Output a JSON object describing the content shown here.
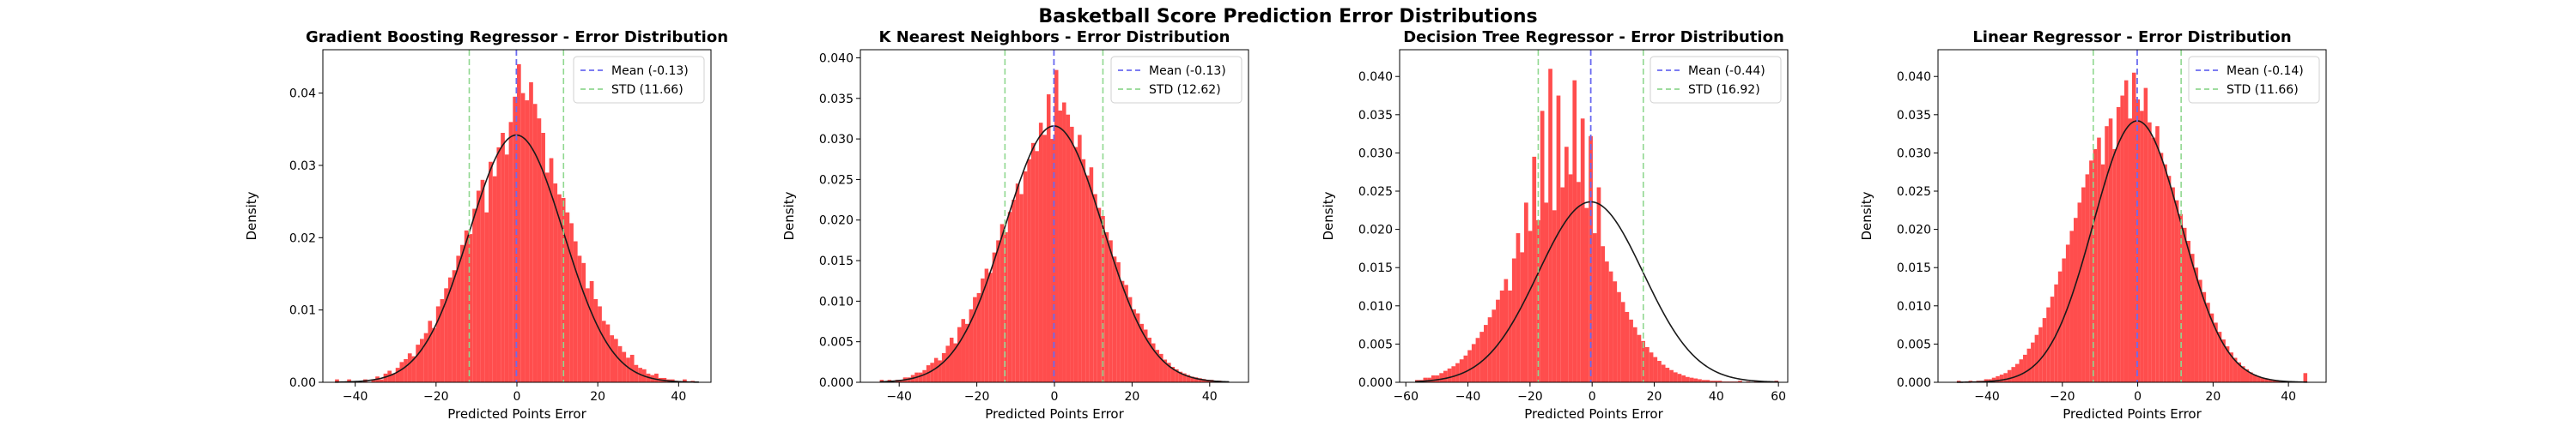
{
  "figure": {
    "suptitle": "Basketball Score Prediction Error Distributions"
  },
  "colors": {
    "bar": "#ff4d4d",
    "curve": "#1a1a1a",
    "mean_line": "#6a6af0",
    "std_line": "#90d890",
    "axes": "#000000",
    "background": "#ffffff"
  },
  "chart_data": [
    {
      "type": "histogram",
      "title": "Gradient Boosting Regressor - Error Distribution",
      "xlabel": "Predicted Points Error",
      "ylabel": "Density",
      "xlim": [
        -48,
        48
      ],
      "ylim": [
        0,
        0.046
      ],
      "xticks": [
        -40,
        -20,
        0,
        20,
        40
      ],
      "yticks": [
        0.0,
        0.01,
        0.02,
        0.03,
        0.04
      ],
      "ytick_labels": [
        "0.00",
        "0.01",
        "0.02",
        "0.03",
        "0.04"
      ],
      "mean": -0.13,
      "std": 11.66,
      "curve_peak": 0.0342,
      "hist_range": [
        -45,
        45
      ],
      "legend": {
        "position": "top-right",
        "entries": [
          {
            "label": "Mean (-0.13)",
            "style": "dashed",
            "series": "mean"
          },
          {
            "label": "STD (11.66)",
            "style": "dashed",
            "series": "std"
          }
        ]
      },
      "bars": [
        0.0004,
        0,
        0,
        0.0004,
        0,
        0,
        0,
        0.0004,
        0,
        0.0004,
        0.0008,
        0.0004,
        0.0012,
        0.0016,
        0.0012,
        0.002,
        0.0028,
        0.0032,
        0.004,
        0.0036,
        0.0052,
        0.006,
        0.0068,
        0.0085,
        0.0075,
        0.0105,
        0.0115,
        0.013,
        0.0145,
        0.0155,
        0.0175,
        0.019,
        0.021,
        0.0205,
        0.024,
        0.0265,
        0.028,
        0.0235,
        0.0305,
        0.0285,
        0.0325,
        0.0345,
        0.0315,
        0.036,
        0.0395,
        0.044,
        0.04,
        0.039,
        0.0415,
        0.0385,
        0.0365,
        0.0345,
        0.029,
        0.031,
        0.0275,
        0.026,
        0.0255,
        0.0235,
        0.022,
        0.0195,
        0.0175,
        0.0165,
        0.013,
        0.014,
        0.0115,
        0.0105,
        0.0085,
        0.008,
        0.0065,
        0.006,
        0.005,
        0.0042,
        0.0034,
        0.0038,
        0.0024,
        0.002,
        0.0018,
        0.0012,
        0.001,
        0.0012,
        0.0006,
        0.0006,
        0.0004,
        0.0004,
        0.0002,
        0,
        0.0004,
        0,
        0.0002,
        0
      ]
    },
    {
      "type": "histogram",
      "title": "K Nearest Neighbors - Error Distribution",
      "xlabel": "Predicted Points Error",
      "ylabel": "Density",
      "xlim": [
        -50,
        50
      ],
      "ylim": [
        0,
        0.041
      ],
      "xticks": [
        -40,
        -20,
        0,
        20,
        40
      ],
      "yticks": [
        0.0,
        0.005,
        0.01,
        0.015,
        0.02,
        0.025,
        0.03,
        0.035,
        0.04
      ],
      "ytick_labels": [
        "0.000",
        "0.005",
        "0.010",
        "0.015",
        "0.020",
        "0.025",
        "0.030",
        "0.035",
        "0.040"
      ],
      "mean": -0.13,
      "std": 12.62,
      "curve_peak": 0.0316,
      "hist_range": [
        -45,
        45
      ],
      "legend": {
        "position": "top-right",
        "entries": [
          {
            "label": "Mean (-0.13)",
            "style": "dashed",
            "series": "mean"
          },
          {
            "label": "STD (12.62)",
            "style": "dashed",
            "series": "std"
          }
        ]
      },
      "bars": [
        0.0003,
        0,
        0.0003,
        0,
        0.0003,
        0.0003,
        0.0006,
        0.0006,
        0.0009,
        0.0012,
        0.0012,
        0.0015,
        0.0021,
        0.0024,
        0.003,
        0.0027,
        0.0036,
        0.0045,
        0.0055,
        0.0048,
        0.0068,
        0.0078,
        0.0072,
        0.009,
        0.0105,
        0.011,
        0.0128,
        0.014,
        0.0135,
        0.016,
        0.0175,
        0.0195,
        0.0185,
        0.021,
        0.0225,
        0.0245,
        0.0232,
        0.026,
        0.0275,
        0.0295,
        0.0285,
        0.032,
        0.0305,
        0.0355,
        0.03,
        0.0385,
        0.0335,
        0.0345,
        0.033,
        0.0315,
        0.029,
        0.0305,
        0.0275,
        0.0255,
        0.0265,
        0.0232,
        0.0215,
        0.0205,
        0.0185,
        0.0175,
        0.0155,
        0.0148,
        0.0125,
        0.012,
        0.0105,
        0.009,
        0.0085,
        0.0072,
        0.0065,
        0.0055,
        0.0048,
        0.004,
        0.0035,
        0.0028,
        0.0024,
        0.0019,
        0.0016,
        0.0013,
        0.0011,
        0.0009,
        0.0007,
        0.0006,
        0.0005,
        0.0004,
        0.0003,
        0.0003,
        0.0002,
        0.0002,
        0.0001,
        0.0001
      ]
    },
    {
      "type": "histogram",
      "title": "Decision Tree Regressor - Error Distribution",
      "xlabel": "Predicted Points Error",
      "ylabel": "Density",
      "xlim": [
        -62,
        63
      ],
      "ylim": [
        0,
        0.0435
      ],
      "xticks": [
        -60,
        -40,
        -20,
        0,
        20,
        40,
        60
      ],
      "yticks": [
        0.0,
        0.005,
        0.01,
        0.015,
        0.02,
        0.025,
        0.03,
        0.035,
        0.04
      ],
      "ytick_labels": [
        "0.000",
        "0.005",
        "0.010",
        "0.015",
        "0.020",
        "0.025",
        "0.030",
        "0.035",
        "0.040"
      ],
      "mean": -0.44,
      "std": 16.92,
      "curve_peak": 0.0236,
      "hist_range": [
        -57,
        60
      ],
      "legend": {
        "position": "top-right",
        "entries": [
          {
            "label": "Mean (-0.44)",
            "style": "dashed",
            "series": "mean"
          },
          {
            "label": "STD (16.92)",
            "style": "dashed",
            "series": "std"
          }
        ]
      },
      "bars": [
        0.0003,
        0.0003,
        0.0006,
        0.0006,
        0.0009,
        0.0009,
        0.0012,
        0.0015,
        0.0018,
        0.0021,
        0.0025,
        0.003,
        0.0035,
        0.0042,
        0.005,
        0.0058,
        0.0066,
        0.0075,
        0.0085,
        0.0095,
        0.0108,
        0.012,
        0.0135,
        0.012,
        0.0162,
        0.0195,
        0.017,
        0.0235,
        0.0198,
        0.0295,
        0.0212,
        0.0355,
        0.0235,
        0.041,
        0.0225,
        0.0375,
        0.0255,
        0.0308,
        0.0272,
        0.0395,
        0.0262,
        0.0345,
        0.0228,
        0.0322,
        0.0195,
        0.0255,
        0.0178,
        0.0158,
        0.0145,
        0.0132,
        0.0118,
        0.0105,
        0.0092,
        0.0082,
        0.0072,
        0.0062,
        0.0054,
        0.0046,
        0.0039,
        0.0033,
        0.0028,
        0.0023,
        0.0019,
        0.0016,
        0.0013,
        0.0011,
        0.0009,
        0.0007,
        0.0006,
        0.0005,
        0.0004,
        0.0003,
        0.0003,
        0.0002,
        0.0002,
        0.0002,
        0.0001,
        0.0001,
        0.0001,
        0.0001,
        0.0002,
        0,
        0.0001,
        0,
        0.0001,
        0,
        0,
        0.0001,
        0,
        0.0002
      ]
    },
    {
      "type": "histogram",
      "title": "Linear Regressor - Error Distribution",
      "xlabel": "Predicted Points Error",
      "ylabel": "Density",
      "xlim": [
        -53,
        50
      ],
      "ylim": [
        0,
        0.0435
      ],
      "xticks": [
        -40,
        -20,
        0,
        20,
        40
      ],
      "yticks": [
        0.0,
        0.005,
        0.01,
        0.015,
        0.02,
        0.025,
        0.03,
        0.035,
        0.04
      ],
      "ytick_labels": [
        "0.000",
        "0.005",
        "0.010",
        "0.015",
        "0.020",
        "0.025",
        "0.030",
        "0.035",
        "0.040"
      ],
      "mean": -0.14,
      "std": 11.66,
      "curve_peak": 0.0342,
      "hist_range": [
        -48,
        45
      ],
      "legend": {
        "position": "top-right",
        "entries": [
          {
            "label": "Mean (-0.14)",
            "style": "dashed",
            "series": "mean"
          },
          {
            "label": "STD (11.66)",
            "style": "dashed",
            "series": "std"
          }
        ]
      },
      "bars": [
        0.0002,
        0,
        0,
        0.0002,
        0,
        0.0002,
        0.0002,
        0.0004,
        0.0004,
        0.0006,
        0.0008,
        0.001,
        0.0012,
        0.0016,
        0.002,
        0.0024,
        0.003,
        0.0036,
        0.0044,
        0.0052,
        0.0062,
        0.0072,
        0.0084,
        0.0098,
        0.0112,
        0.0128,
        0.0145,
        0.0162,
        0.018,
        0.0198,
        0.0215,
        0.0235,
        0.0255,
        0.0272,
        0.029,
        0.0305,
        0.032,
        0.0285,
        0.0335,
        0.0345,
        0.0305,
        0.036,
        0.0375,
        0.0395,
        0.0345,
        0.0405,
        0.037,
        0.0355,
        0.0385,
        0.034,
        0.032,
        0.0335,
        0.03,
        0.0285,
        0.027,
        0.0255,
        0.0238,
        0.022,
        0.0202,
        0.0185,
        0.0168,
        0.015,
        0.0134,
        0.0118,
        0.0104,
        0.009,
        0.0078,
        0.0066,
        0.0056,
        0.0047,
        0.0039,
        0.0032,
        0.0026,
        0.0021,
        0.0017,
        0.0013,
        0.001,
        0.0008,
        0.0006,
        0.0005,
        0.0004,
        0.0003,
        0.0002,
        0.0002,
        0.0001,
        0.0001,
        0.0001,
        0,
        0,
        0.0012
      ]
    }
  ]
}
